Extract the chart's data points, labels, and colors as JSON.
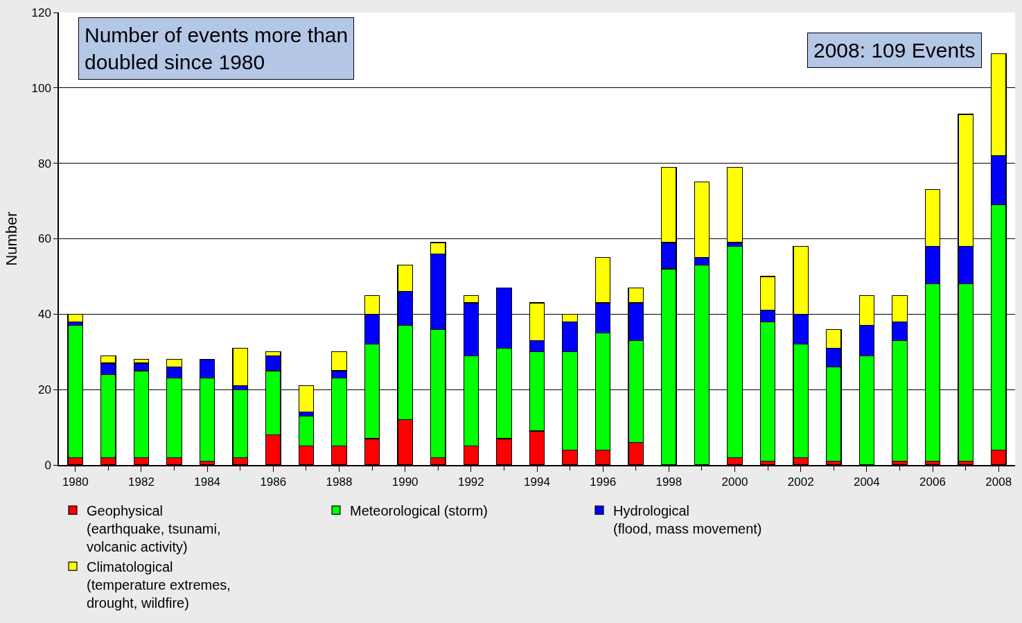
{
  "chart_data": {
    "type": "bar",
    "stacked": true,
    "ylabel": "Number",
    "categories": [
      "1980",
      null,
      "1982",
      null,
      "1984",
      null,
      "1986",
      null,
      "1988",
      null,
      "1990",
      null,
      "1992",
      null,
      "1994",
      null,
      "1996",
      null,
      "1998",
      null,
      "2000",
      null,
      "2002",
      null,
      "2004",
      null,
      "2006",
      null,
      "2008"
    ],
    "series": [
      {
        "name": "Geophysical\n(earthquake, tsunami,\nvolcanic activity)",
        "color": "#ff0000",
        "values": [
          2,
          2,
          2,
          2,
          1,
          2,
          8,
          5,
          5,
          7,
          12,
          2,
          5,
          7,
          9,
          4,
          4,
          6,
          0,
          0,
          2,
          1,
          2,
          1,
          0,
          1,
          1,
          1,
          4
        ]
      },
      {
        "name": "Meteorological (storm)",
        "color": "#00ff00",
        "values": [
          35,
          22,
          23,
          21,
          22,
          18,
          17,
          8,
          18,
          25,
          25,
          34,
          24,
          24,
          21,
          26,
          31,
          27,
          52,
          53,
          56,
          37,
          30,
          25,
          29,
          32,
          47,
          47,
          65
        ]
      },
      {
        "name": "Hydrological\n(flood, mass movement)",
        "color": "#0000ff",
        "values": [
          1,
          3,
          2,
          3,
          5,
          1,
          4,
          1,
          2,
          8,
          9,
          20,
          14,
          16,
          3,
          8,
          8,
          10,
          7,
          2,
          1,
          3,
          8,
          5,
          8,
          5,
          10,
          10,
          13
        ]
      },
      {
        "name": "Climatological\n(temperature extremes,\ndrought, wildfire)",
        "color": "#ffff00",
        "values": [
          2,
          2,
          1,
          2,
          0,
          10,
          1,
          7,
          5,
          5,
          7,
          3,
          2,
          0,
          10,
          2,
          12,
          4,
          20,
          20,
          20,
          9,
          18,
          5,
          8,
          7,
          15,
          35,
          27
        ]
      }
    ],
    "ylim": [
      0,
      120
    ],
    "yticks": [
      0,
      20,
      40,
      60,
      80,
      100,
      120
    ],
    "grid": "y",
    "legend": "bottom",
    "annotations": [
      "Number of events more than\ndoubled since 1980",
      "2008: 109 Events"
    ]
  }
}
